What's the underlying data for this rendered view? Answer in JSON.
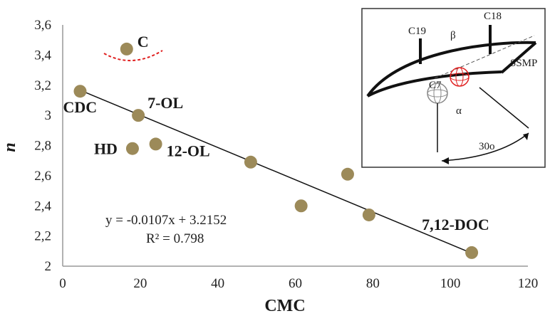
{
  "chart_data": {
    "type": "scatter",
    "xlabel": "CMC",
    "ylabel": "n",
    "xlim": [
      0,
      120
    ],
    "ylim": [
      2,
      3.6
    ],
    "x_ticks": [
      "0",
      "20",
      "40",
      "60",
      "80",
      "100",
      "120"
    ],
    "y_ticks": [
      "2",
      "2,2",
      "2,4",
      "2,6",
      "2,8",
      "3",
      "3,2",
      "3,4",
      "3,6"
    ],
    "grid": false,
    "legend": "none",
    "marker_color": "#9c8a59",
    "points": [
      {
        "x": 16.5,
        "y": 3.44,
        "label": "C"
      },
      {
        "x": 4.5,
        "y": 3.16,
        "label": "CDC"
      },
      {
        "x": 19.5,
        "y": 3.0,
        "label": "7-OL"
      },
      {
        "x": 18.0,
        "y": 2.78,
        "label": "HD"
      },
      {
        "x": 24.0,
        "y": 2.81,
        "label": "12-OL"
      },
      {
        "x": 48.5,
        "y": 2.69,
        "label": ""
      },
      {
        "x": 61.5,
        "y": 2.4,
        "label": ""
      },
      {
        "x": 73.5,
        "y": 2.61,
        "label": ""
      },
      {
        "x": 79.0,
        "y": 2.34,
        "label": ""
      },
      {
        "x": 105.5,
        "y": 2.09,
        "label": "7,12-DOC"
      }
    ],
    "trendline": {
      "slope": -0.0107,
      "intercept": 3.2152,
      "x_range": [
        4.5,
        105.5
      ],
      "equation": "y = -0.0107x + 3.2152",
      "r2": "R² = 0.798"
    },
    "annotation_curve_color": "#e02020",
    "inset_labels": {
      "c19": "C19",
      "c18": "C18",
      "c7": "C7",
      "beta": "β",
      "alpha": "α",
      "ssmp": "SSMP",
      "angle": "30o"
    }
  }
}
